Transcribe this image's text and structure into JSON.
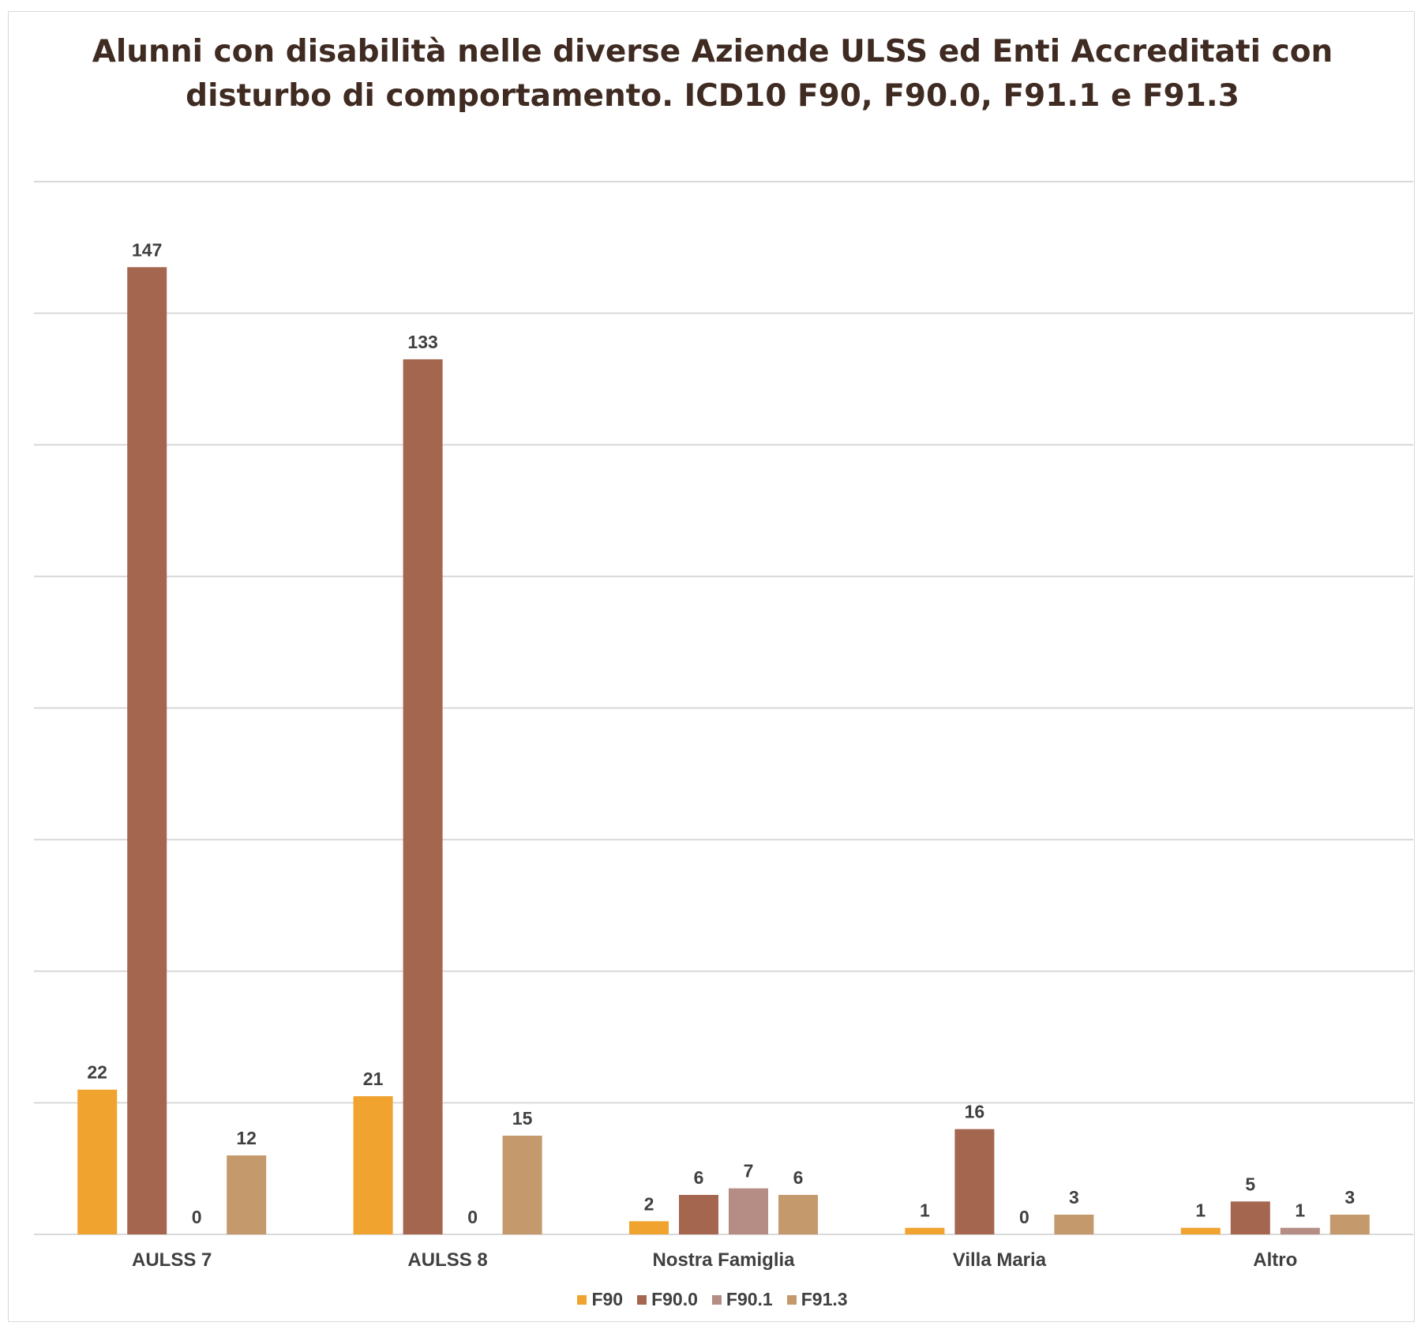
{
  "chart_data": {
    "type": "bar",
    "title_lines": [
      "Alunni con disabilità nelle diverse Aziende ULSS ed Enti Accreditati con",
      "disturbo di comportamento. ICD10 F90, F90.0, F91.1 e F91.3"
    ],
    "categories": [
      "AULSS 7",
      "AULSS 8",
      "Nostra Famiglia",
      "Villa Maria",
      "Altro"
    ],
    "series": [
      {
        "name": "F90",
        "color": "#F0A32F",
        "values": [
          22,
          21,
          2,
          1,
          1
        ]
      },
      {
        "name": "F90.0",
        "color": "#A4664E",
        "values": [
          147,
          133,
          6,
          16,
          5
        ]
      },
      {
        "name": "F90.1",
        "color": "#B58D84",
        "values": [
          0,
          0,
          7,
          0,
          1
        ]
      },
      {
        "name": "F91.3",
        "color": "#C49A6C",
        "values": [
          12,
          15,
          6,
          3,
          3
        ]
      }
    ],
    "ylim": [
      0,
      160
    ],
    "y_gridline_step": 20,
    "grid": true,
    "y_tick_labels_shown": false,
    "data_labels": true,
    "legend_position": "bottom"
  }
}
